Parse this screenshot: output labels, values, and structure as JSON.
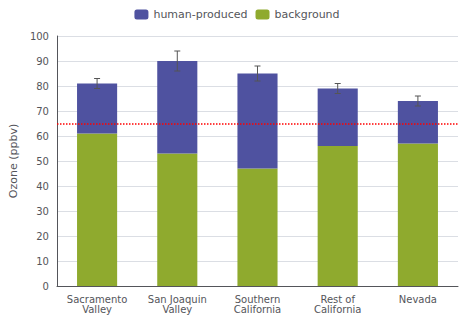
{
  "chart_data": {
    "type": "bar",
    "stacked": true,
    "categories": [
      "Sacramento\nValley",
      "San Joaquin\nValley",
      "Southern\nCalifornia",
      "Rest of\nCalifornia",
      "Nevada"
    ],
    "series": [
      {
        "name": "background",
        "color": "#8faa2e",
        "values": [
          61,
          53,
          47,
          56,
          57
        ]
      },
      {
        "name": "human-produced",
        "color": "#4f52a0",
        "values": [
          20,
          37,
          38,
          23,
          17
        ]
      }
    ],
    "legend_order": [
      "human-produced",
      "background"
    ],
    "totals": [
      81,
      90,
      85,
      79,
      74
    ],
    "error_bars": [
      2,
      4,
      3,
      2,
      2
    ],
    "reference_line": {
      "y": 65,
      "color": "#ff0000",
      "line_style": "dotted"
    },
    "ylabel": "Ozone (ppbv)",
    "ylim": [
      0,
      100
    ],
    "yticks": [
      0,
      10,
      20,
      30,
      40,
      50,
      60,
      70,
      80,
      90,
      100
    ],
    "grid": true,
    "legend": "upper center"
  }
}
